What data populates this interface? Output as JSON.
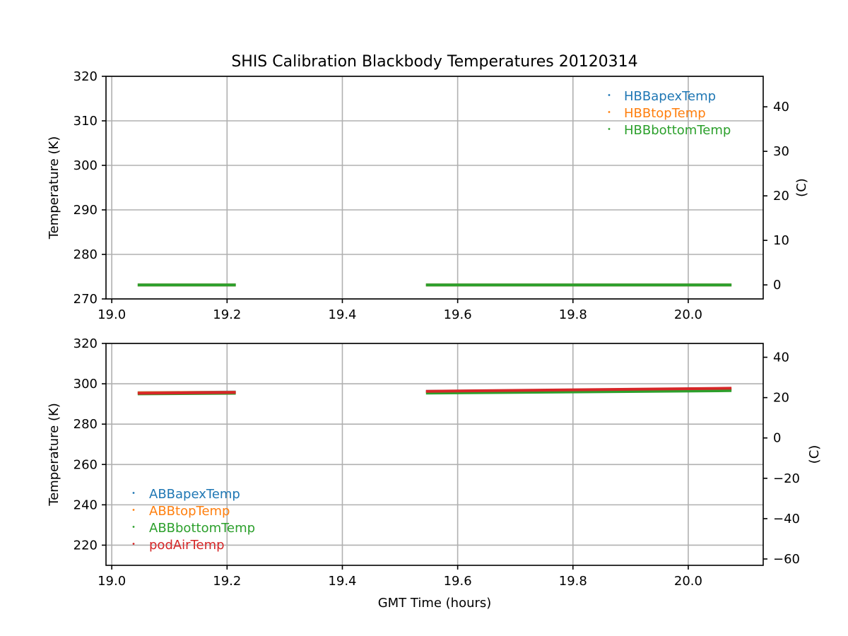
{
  "chart_data": [
    {
      "type": "line",
      "title": "SHIS Calibration Blackbody Temperatures 20120314",
      "xlabel": "",
      "ylabel": "Temperature (K)",
      "y2label": "(C)",
      "xlim": [
        18.99,
        20.13
      ],
      "ylim": [
        270,
        320
      ],
      "y2lim": [
        -3.15,
        46.85
      ],
      "xticks": [
        19.0,
        19.2,
        19.4,
        19.6,
        19.8,
        20.0
      ],
      "xtick_labels": [
        "19.0",
        "19.2",
        "19.4",
        "19.6",
        "19.8",
        "20.0"
      ],
      "yticks": [
        270,
        280,
        290,
        300,
        310,
        320
      ],
      "ytick_labels": [
        "270",
        "280",
        "290",
        "300",
        "310",
        "320"
      ],
      "y2ticks": [
        0,
        10,
        20,
        30,
        40
      ],
      "y2tick_labels": [
        "0",
        "10",
        "20",
        "30",
        "40"
      ],
      "grid": true,
      "legend_position": "top-right",
      "series": [
        {
          "name": "HBBapexTemp",
          "color": "#1f77b4",
          "segments": [
            {
              "x": [
                19.045,
                19.215
              ],
              "y": [
                273.15,
                273.15
              ]
            },
            {
              "x": [
                19.545,
                20.075
              ],
              "y": [
                273.15,
                273.15
              ]
            }
          ]
        },
        {
          "name": "HBBtopTemp",
          "color": "#ff7f0e",
          "segments": [
            {
              "x": [
                19.045,
                19.215
              ],
              "y": [
                273.15,
                273.15
              ]
            },
            {
              "x": [
                19.545,
                20.075
              ],
              "y": [
                273.15,
                273.15
              ]
            }
          ]
        },
        {
          "name": "HBBbottomTemp",
          "color": "#2ca02c",
          "segments": [
            {
              "x": [
                19.045,
                19.215
              ],
              "y": [
                273.15,
                273.15
              ]
            },
            {
              "x": [
                19.545,
                20.075
              ],
              "y": [
                273.15,
                273.15
              ]
            }
          ]
        }
      ]
    },
    {
      "type": "line",
      "title": "",
      "xlabel": "GMT Time (hours)",
      "ylabel": "Temperature (K)",
      "y2label": "(C)",
      "xlim": [
        18.99,
        20.13
      ],
      "ylim": [
        210,
        320
      ],
      "y2lim": [
        -63.15,
        46.85
      ],
      "xticks": [
        19.0,
        19.2,
        19.4,
        19.6,
        19.8,
        20.0
      ],
      "xtick_labels": [
        "19.0",
        "19.2",
        "19.4",
        "19.6",
        "19.8",
        "20.0"
      ],
      "yticks": [
        220,
        240,
        260,
        280,
        300,
        320
      ],
      "ytick_labels": [
        "220",
        "240",
        "260",
        "280",
        "300",
        "320"
      ],
      "y2ticks": [
        -60,
        -40,
        -20,
        0,
        20,
        40
      ],
      "y2tick_labels": [
        "−60",
        "−40",
        "−20",
        "0",
        "20",
        "40"
      ],
      "grid": true,
      "legend_position": "lower-left",
      "series": [
        {
          "name": "ABBapexTemp",
          "color": "#1f77b4",
          "segments": [
            {
              "x": [
                19.045,
                19.215
              ],
              "y": [
                295.6,
                295.9
              ]
            },
            {
              "x": [
                19.545,
                20.075
              ],
              "y": [
                296.2,
                297.4
              ]
            }
          ]
        },
        {
          "name": "ABBtopTemp",
          "color": "#ff7f0e",
          "segments": [
            {
              "x": [
                19.045,
                19.215
              ],
              "y": [
                295.5,
                295.8
              ]
            },
            {
              "x": [
                19.545,
                20.075
              ],
              "y": [
                296.0,
                297.2
              ]
            }
          ]
        },
        {
          "name": "ABBbottomTemp",
          "color": "#2ca02c",
          "segments": [
            {
              "x": [
                19.045,
                19.215
              ],
              "y": [
                295.0,
                295.3
              ]
            },
            {
              "x": [
                19.545,
                20.075
              ],
              "y": [
                295.4,
                296.6
              ]
            }
          ]
        },
        {
          "name": "podAirTemp",
          "color": "#d62728",
          "segments": [
            {
              "x": [
                19.045,
                19.215
              ],
              "y": [
                295.3,
                295.7
              ]
            },
            {
              "x": [
                19.545,
                20.075
              ],
              "y": [
                296.3,
                297.8
              ]
            }
          ]
        }
      ]
    }
  ]
}
